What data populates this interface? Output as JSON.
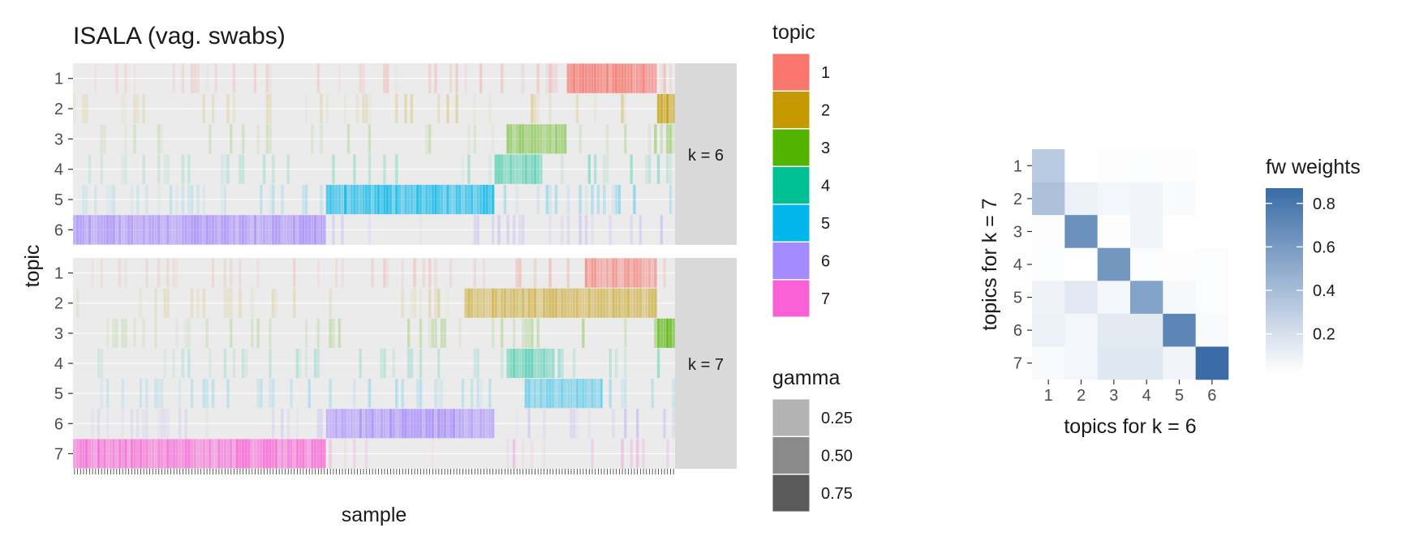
{
  "chart_data": [
    {
      "type": "heatmap",
      "title": "ISALA (vag. swabs)",
      "xlabel": "sample",
      "ylabel": "topic",
      "facets": [
        {
          "label": "k = 6",
          "topics": [
            "1",
            "2",
            "3",
            "4",
            "5",
            "6"
          ],
          "dominant_profile": [
            {
              "topic": "6",
              "from": 0.0,
              "to": 0.42,
              "gamma": 0.85
            },
            {
              "topic": "5",
              "from": 0.42,
              "to": 0.7,
              "gamma": 0.85
            },
            {
              "topic": "4",
              "from": 0.7,
              "to": 0.78,
              "gamma": 0.55
            },
            {
              "topic": "3",
              "from": 0.72,
              "to": 0.82,
              "gamma": 0.55
            },
            {
              "topic": "1",
              "from": 0.82,
              "to": 0.97,
              "gamma": 0.9
            },
            {
              "topic": "2",
              "from": 0.97,
              "to": 1.0,
              "gamma": 0.85
            }
          ]
        },
        {
          "label": "k = 7",
          "topics": [
            "1",
            "2",
            "3",
            "4",
            "5",
            "6",
            "7"
          ],
          "dominant_profile": [
            {
              "topic": "7",
              "from": 0.0,
              "to": 0.42,
              "gamma": 0.85
            },
            {
              "topic": "6",
              "from": 0.42,
              "to": 0.7,
              "gamma": 0.85
            },
            {
              "topic": "4",
              "from": 0.72,
              "to": 0.8,
              "gamma": 0.55
            },
            {
              "topic": "5",
              "from": 0.75,
              "to": 0.88,
              "gamma": 0.5
            },
            {
              "topic": "2",
              "from": 0.65,
              "to": 0.97,
              "gamma": 0.6
            },
            {
              "topic": "1",
              "from": 0.85,
              "to": 0.97,
              "gamma": 0.7
            },
            {
              "topic": "3",
              "from": 0.97,
              "to": 1.0,
              "gamma": 0.85
            }
          ]
        }
      ],
      "n_samples": 200,
      "legend_topic": {
        "title": "topic",
        "entries": [
          {
            "label": "1",
            "color": "#F8766D"
          },
          {
            "label": "2",
            "color": "#C49A00"
          },
          {
            "label": "3",
            "color": "#53B400"
          },
          {
            "label": "4",
            "color": "#00C094"
          },
          {
            "label": "5",
            "color": "#00B6EB"
          },
          {
            "label": "6",
            "color": "#A58AFF"
          },
          {
            "label": "7",
            "color": "#FB61D7"
          }
        ]
      },
      "legend_gamma": {
        "title": "gamma",
        "entries": [
          {
            "label": "0.25",
            "color": "#b3b3b3"
          },
          {
            "label": "0.50",
            "color": "#8a8a8a"
          },
          {
            "label": "0.75",
            "color": "#5a5a5a"
          }
        ]
      }
    },
    {
      "type": "heatmap",
      "xlabel": "topics for k = 6",
      "ylabel": "topics for k = 7",
      "x": [
        "1",
        "2",
        "3",
        "4",
        "5",
        "6"
      ],
      "y": [
        "1",
        "2",
        "3",
        "4",
        "5",
        "6",
        "7"
      ],
      "values": [
        [
          0.32,
          0.02,
          0.03,
          0.04,
          0.03,
          0.02
        ],
        [
          0.38,
          0.1,
          0.07,
          0.08,
          0.05,
          0.02
        ],
        [
          0.03,
          0.65,
          0.03,
          0.08,
          0.02,
          0.02
        ],
        [
          0.04,
          0.02,
          0.62,
          0.04,
          0.03,
          0.04
        ],
        [
          0.09,
          0.15,
          0.07,
          0.55,
          0.06,
          0.04
        ],
        [
          0.1,
          0.07,
          0.14,
          0.14,
          0.72,
          0.05
        ],
        [
          0.05,
          0.07,
          0.16,
          0.16,
          0.08,
          0.87
        ]
      ],
      "legend": {
        "title": "fw weights",
        "ticks": [
          "0.8",
          "0.6",
          "0.4",
          "0.2"
        ],
        "low_color": "#ffffff",
        "high_color": "#3A6BA6",
        "range": [
          0.02,
          0.87
        ]
      }
    }
  ]
}
